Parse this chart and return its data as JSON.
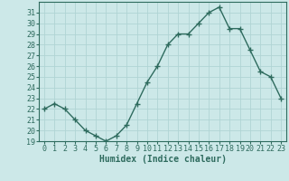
{
  "x": [
    0,
    1,
    2,
    3,
    4,
    5,
    6,
    7,
    8,
    9,
    10,
    11,
    12,
    13,
    14,
    15,
    16,
    17,
    18,
    19,
    20,
    21,
    22,
    23
  ],
  "y": [
    22.0,
    22.5,
    22.0,
    21.0,
    20.0,
    19.5,
    19.0,
    19.5,
    20.5,
    22.5,
    24.5,
    26.0,
    28.0,
    29.0,
    29.0,
    30.0,
    31.0,
    31.5,
    29.5,
    29.5,
    27.5,
    25.5,
    25.0,
    23.0
  ],
  "xlabel": "Humidex (Indice chaleur)",
  "ylim": [
    19,
    32
  ],
  "xlim": [
    -0.5,
    23.5
  ],
  "yticks": [
    19,
    20,
    21,
    22,
    23,
    24,
    25,
    26,
    27,
    28,
    29,
    30,
    31
  ],
  "xticks": [
    0,
    1,
    2,
    3,
    4,
    5,
    6,
    7,
    8,
    9,
    10,
    11,
    12,
    13,
    14,
    15,
    16,
    17,
    18,
    19,
    20,
    21,
    22,
    23
  ],
  "line_color": "#2e6b5e",
  "marker": "+",
  "marker_size": 4.0,
  "line_width": 1.0,
  "bg_color": "#cce8e8",
  "grid_color": "#b0d4d4",
  "xlabel_fontsize": 7,
  "tick_fontsize": 6
}
